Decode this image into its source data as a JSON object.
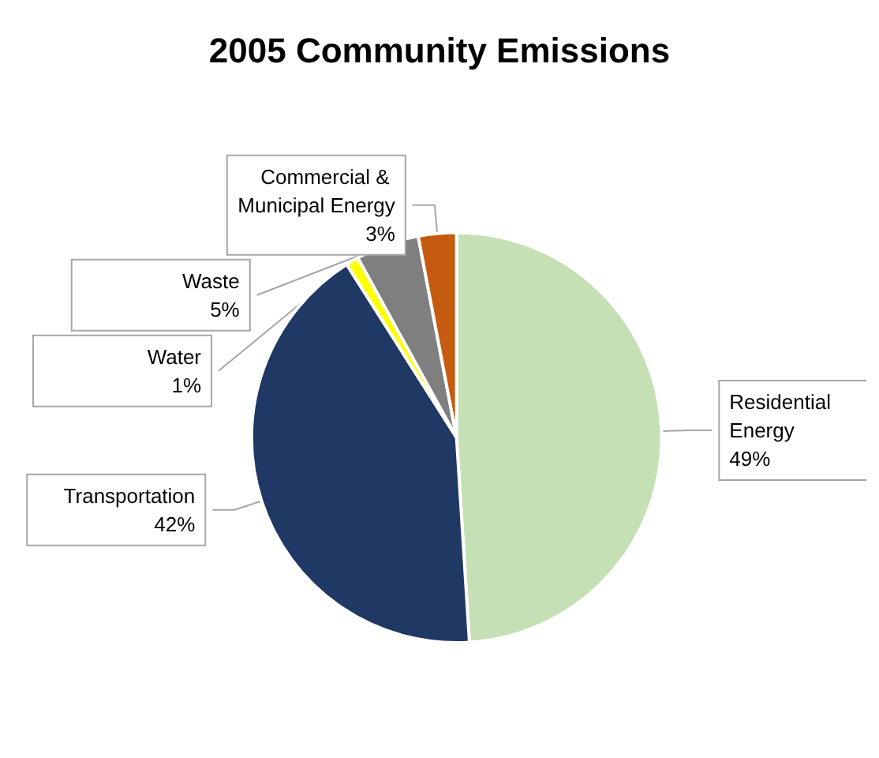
{
  "chart_data": {
    "type": "pie",
    "title": "2005 Community Emissions",
    "categories": [
      "Residential Energy",
      "Transportation",
      "Water",
      "Waste",
      "Commercial & Municipal Energy"
    ],
    "values": [
      49,
      42,
      1,
      5,
      3
    ],
    "colors": [
      "#c5e0b4",
      "#203864",
      "#ffff00",
      "#7f7f7f",
      "#c55a11"
    ],
    "value_labels": [
      "49%",
      "42%",
      "1%",
      "5%",
      "3%"
    ],
    "legend": false
  }
}
